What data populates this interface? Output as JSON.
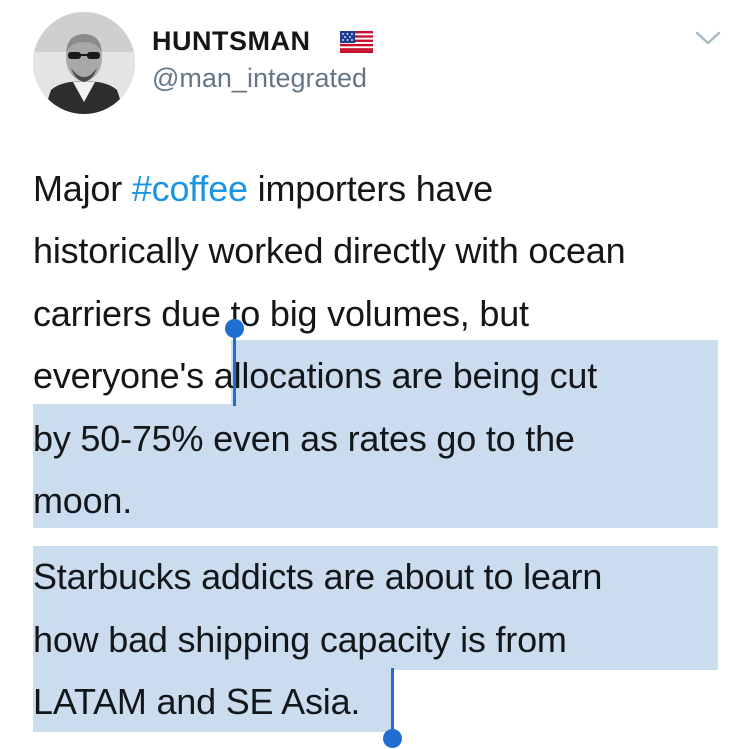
{
  "author": {
    "display_name": "HUNTSMAN",
    "flag_icon": "us-flag-icon",
    "handle": "@man_integrated",
    "avatar_icon": "avatar-photo-bearded-man-sunglasses"
  },
  "menu": {
    "icon": "chevron-down-icon"
  },
  "tweet": {
    "p1": {
      "l1_a": "Major ",
      "l1_hashtag": "#coffee",
      "l1_b": " importers have",
      "l2": "historically worked directly with ocean",
      "l3": "carriers due to big volumes, but",
      "l4_a": "everyone's ",
      "l4_b": "allocations are being cut",
      "l5": "by 50-75% even as rates go to the",
      "l6": "moon."
    },
    "p2": {
      "l1": "Starbucks addicts are about to learn",
      "l2": "how bad shipping capacity is from",
      "l3": "LATAM and SE Asia."
    }
  },
  "colors": {
    "text": "#14171a",
    "handle": "#657786",
    "hashtag": "#1b95e0",
    "selection": "#cbdcee",
    "selection_handle": "#1f6fd2"
  }
}
